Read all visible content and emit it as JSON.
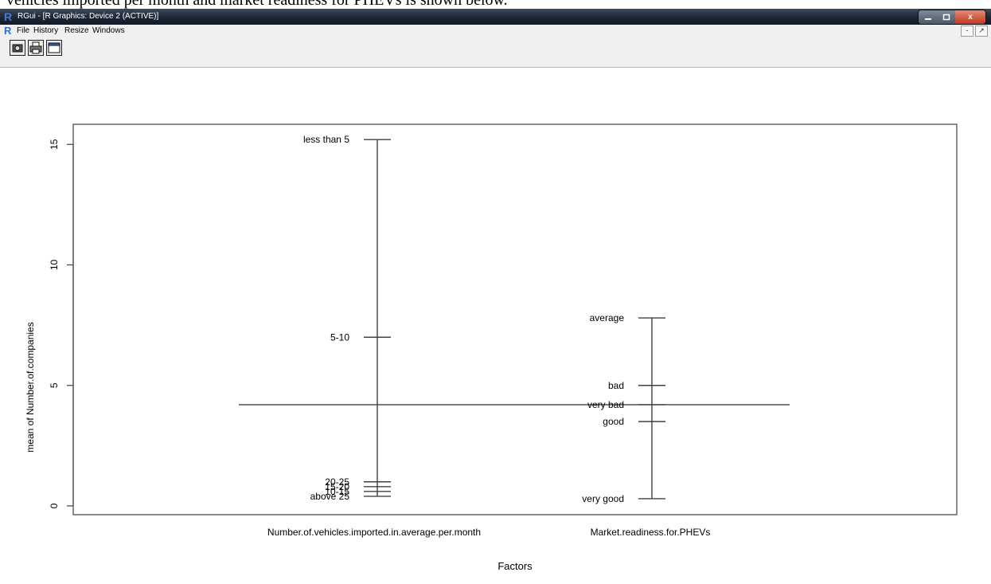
{
  "caption": "vehicles imported per month and market readiness for PHEVs is shown below.",
  "window": {
    "title": "RGui - [R Graphics: Device 2 (ACTIVE)]",
    "logo": "R",
    "controls": {
      "minimize_icon": "minimize-icon",
      "maximize_icon": "maximize-icon",
      "close_icon": "close-icon",
      "close_label": "x"
    }
  },
  "menubar": {
    "logo": "R",
    "items": [
      "File",
      "History",
      "Resize",
      "Windows"
    ],
    "mdi_controls": [
      "-",
      "↗"
    ]
  },
  "toolbar": {
    "buttons": [
      {
        "icon": "copy-icon"
      },
      {
        "icon": "print-icon"
      },
      {
        "icon": "window-icon"
      }
    ]
  },
  "chart_data": {
    "type": "line",
    "title": "",
    "xlabel": "Factors",
    "ylabel": "mean of Number.of.companies",
    "ylim": [
      0,
      16
    ],
    "yticks": [
      "0",
      "5",
      "10",
      "15"
    ],
    "grand_mean": 4.2,
    "series": [
      {
        "name": "Number.of.vehicles.imported.in.average.per.month",
        "levels": [
          {
            "label": "less than 5",
            "value": 15.2
          },
          {
            "label": "5-10",
            "value": 7.0
          },
          {
            "label": "20-25",
            "value": 1.0
          },
          {
            "label": "15-20",
            "value": 0.8
          },
          {
            "label": "10-15",
            "value": 0.6
          },
          {
            "label": "above 25",
            "value": 0.4
          }
        ]
      },
      {
        "name": "Market.readiness.for.PHEVs",
        "levels": [
          {
            "label": "average",
            "value": 7.8
          },
          {
            "label": "bad",
            "value": 5.0
          },
          {
            "label": "very bad",
            "value": 4.2
          },
          {
            "label": "good",
            "value": 3.5
          },
          {
            "label": "very good",
            "value": 0.3
          }
        ]
      }
    ]
  }
}
